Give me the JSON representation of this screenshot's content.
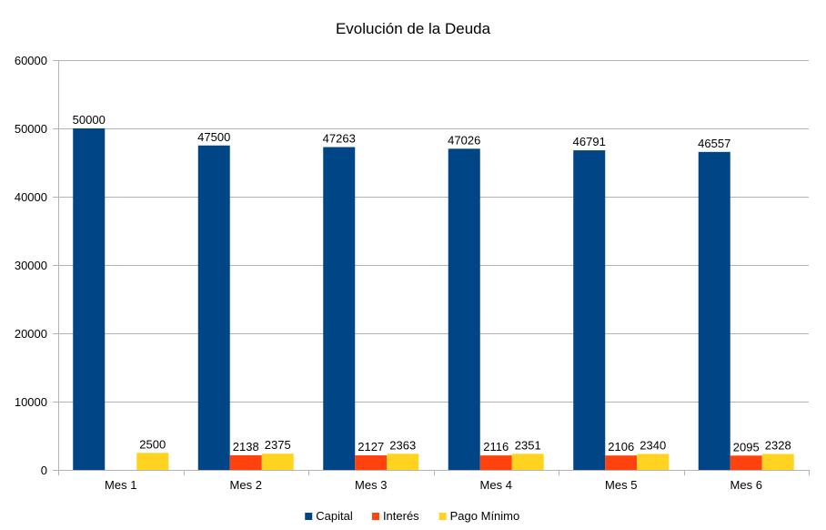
{
  "chart_data": {
    "type": "bar",
    "title": "Evolución de la Deuda",
    "xlabel": "",
    "ylabel": "",
    "categories": [
      "Mes 1",
      "Mes 2",
      "Mes 3",
      "Mes 4",
      "Mes 5",
      "Mes 6"
    ],
    "series": [
      {
        "name": "Capital",
        "color": "#004586",
        "values": [
          50000,
          47500,
          47263,
          47026,
          46791,
          46557
        ],
        "labels": [
          "50000",
          "47500",
          "47263",
          "47026",
          "46791",
          "46557"
        ]
      },
      {
        "name": "Interés",
        "color": "#ff420e",
        "values": [
          0,
          2138,
          2127,
          2116,
          2106,
          2095
        ],
        "labels": [
          "",
          "2138",
          "2127",
          "2116",
          "2106",
          "2095"
        ]
      },
      {
        "name": "Pago Mínimo",
        "color": "#ffd320",
        "values": [
          2500,
          2375,
          2363,
          2351,
          2340,
          2328
        ],
        "labels": [
          "2500",
          "2375",
          "2363",
          "2351",
          "2340",
          "2328"
        ]
      }
    ],
    "ylim": [
      0,
      60000
    ],
    "yticks": [
      0,
      10000,
      20000,
      30000,
      40000,
      50000,
      60000
    ],
    "grid": true,
    "legend_position": "bottom"
  }
}
